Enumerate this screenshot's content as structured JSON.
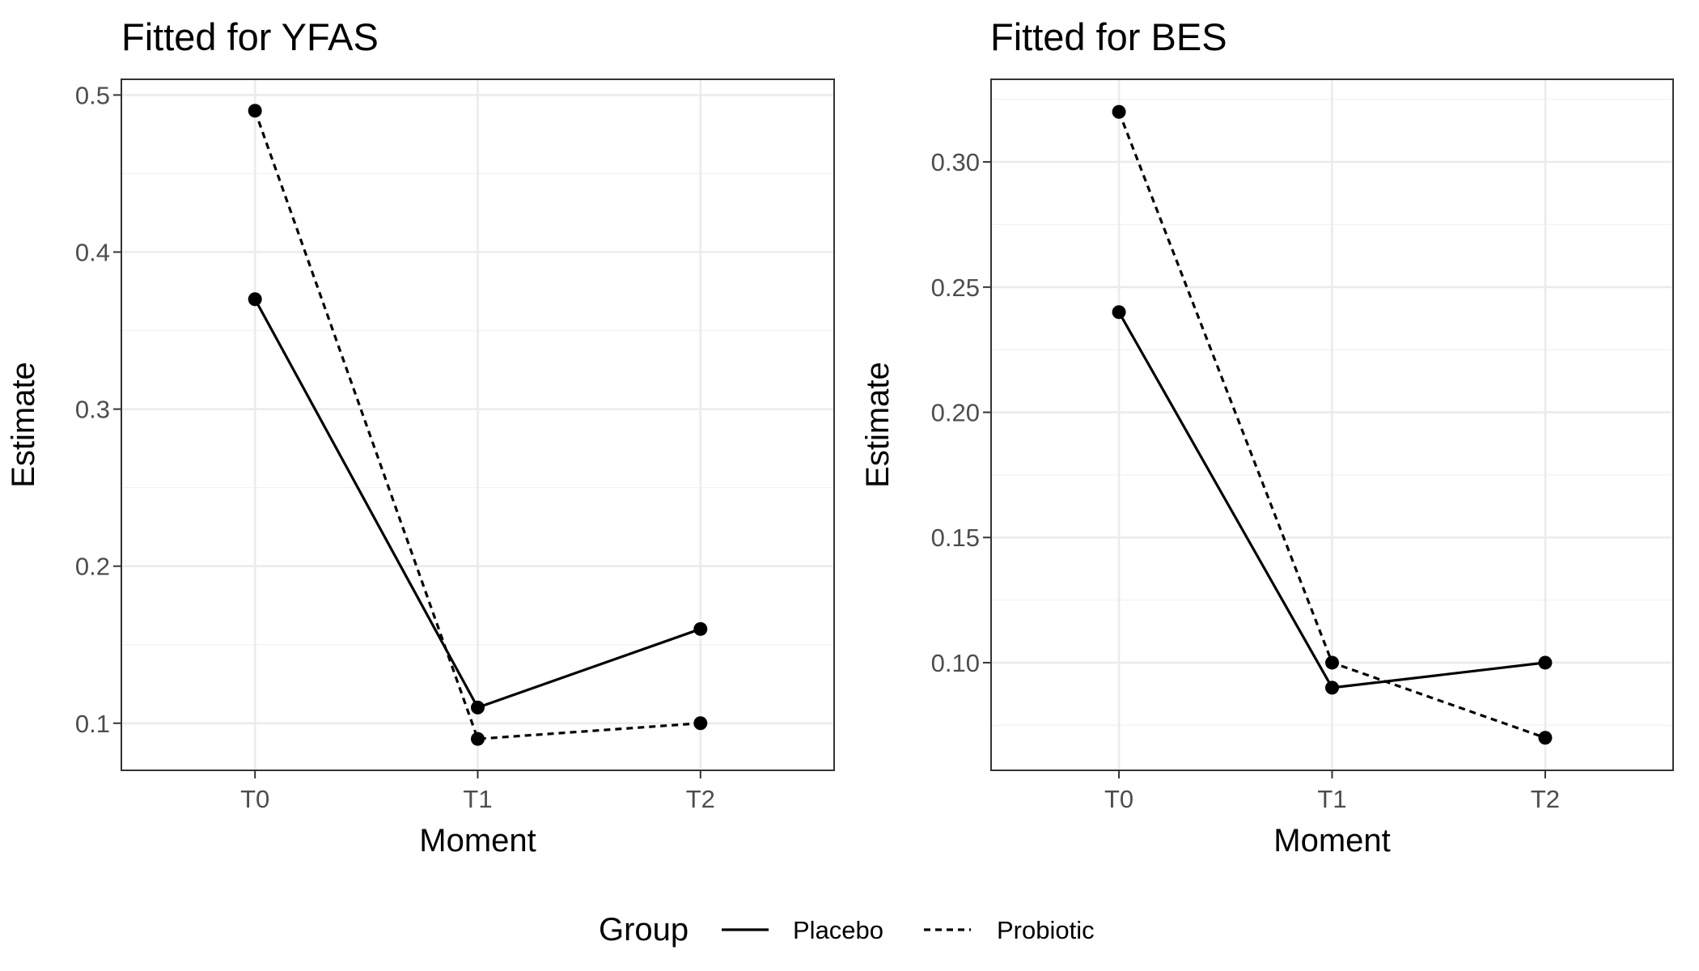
{
  "chart_data": [
    {
      "type": "line",
      "title": "Fitted for YFAS",
      "xlabel": "Moment",
      "ylabel": "Estimate",
      "categories": [
        "T0",
        "T1",
        "T2"
      ],
      "ylim": [
        0.07,
        0.51
      ],
      "yticks": [
        0.1,
        0.2,
        0.3,
        0.4,
        0.5
      ],
      "ytick_labels": [
        "0.1",
        "0.2",
        "0.3",
        "0.4",
        "0.5"
      ],
      "grid": true,
      "series": [
        {
          "name": "Placebo",
          "linetype": "solid",
          "values": [
            0.37,
            0.11,
            0.16
          ]
        },
        {
          "name": "Probiotic",
          "linetype": "dashed",
          "values": [
            0.49,
            0.09,
            0.1
          ]
        }
      ]
    },
    {
      "type": "line",
      "title": "Fitted for BES",
      "xlabel": "Moment",
      "ylabel": "Estimate",
      "categories": [
        "T0",
        "T1",
        "T2"
      ],
      "ylim": [
        0.057,
        0.333
      ],
      "yticks": [
        0.1,
        0.15,
        0.2,
        0.25,
        0.3
      ],
      "ytick_labels": [
        "0.10",
        "0.15",
        "0.20",
        "0.25",
        "0.30"
      ],
      "grid": true,
      "series": [
        {
          "name": "Placebo",
          "linetype": "solid",
          "values": [
            0.24,
            0.09,
            0.1
          ]
        },
        {
          "name": "Probiotic",
          "linetype": "dashed",
          "values": [
            0.32,
            0.1,
            0.07
          ]
        }
      ]
    }
  ],
  "legend": {
    "title": "Group",
    "position": "bottom",
    "items": [
      {
        "label": "Placebo",
        "linetype": "solid"
      },
      {
        "label": "Probiotic",
        "linetype": "dashed"
      }
    ]
  },
  "colors": {
    "line": "#000000",
    "grid": "#ebebeb",
    "border": "#333333",
    "tick_text": "#4d4d4d"
  }
}
